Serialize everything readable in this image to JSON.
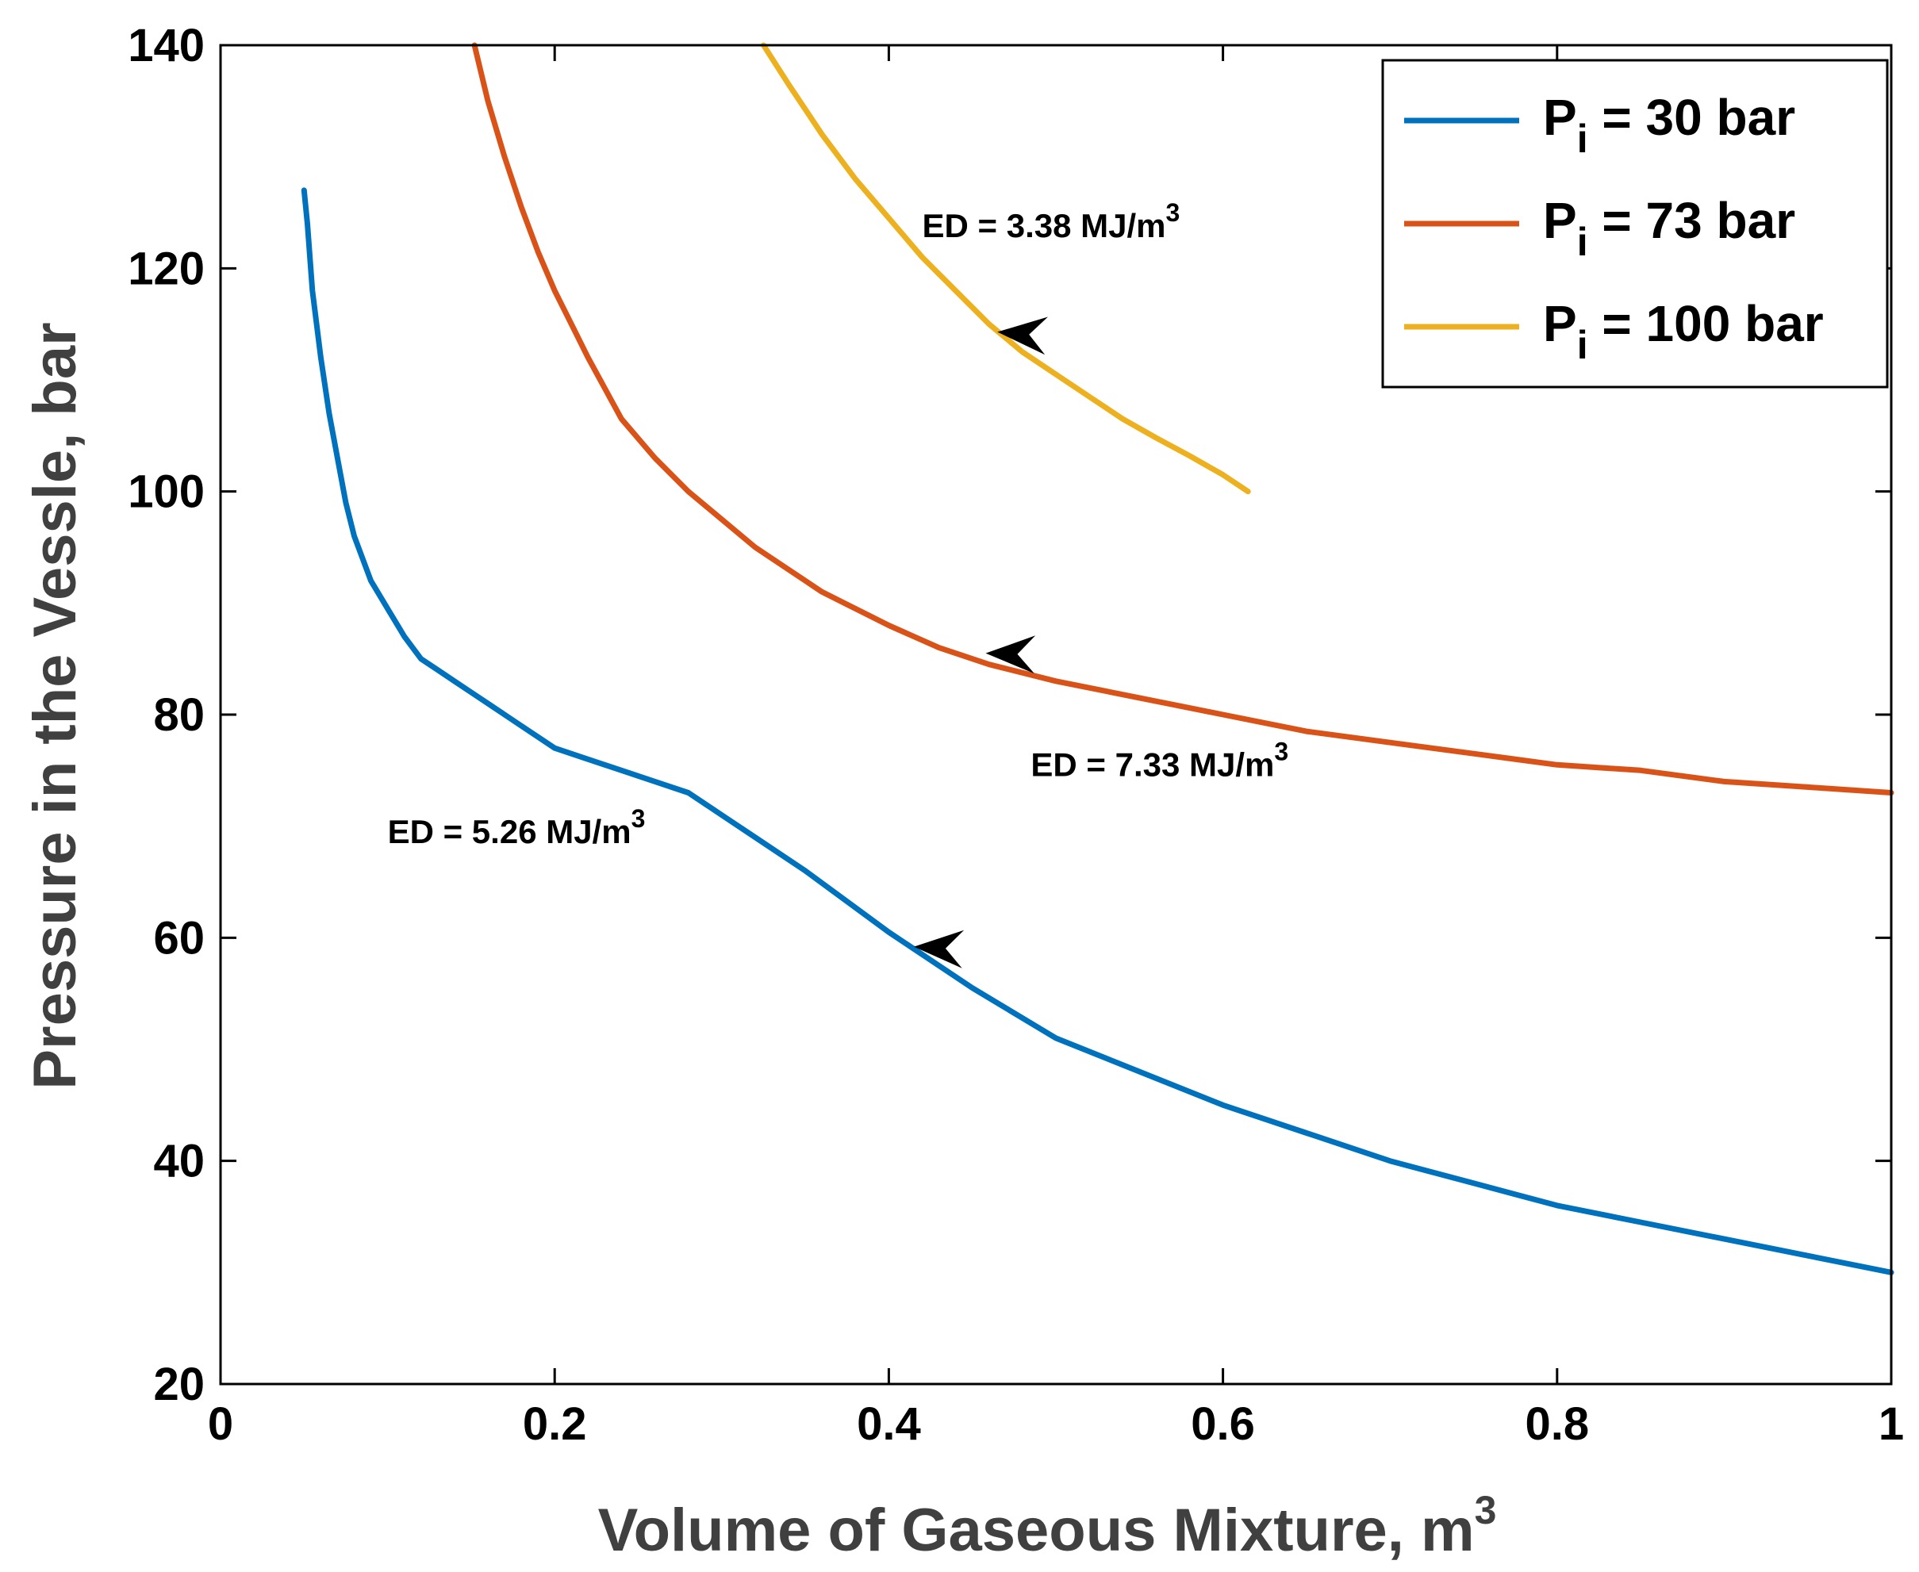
{
  "chart_data": {
    "type": "line",
    "title": "",
    "xlabel": "Volume of Gaseous Mixture, m",
    "xlabel_sup": "3",
    "ylabel": "Pressure in the Vessle, bar",
    "xlim": [
      0,
      1
    ],
    "ylim": [
      20,
      140
    ],
    "xticks": [
      0,
      0.2,
      0.4,
      0.6,
      0.8,
      1
    ],
    "xtick_labels": [
      "0",
      "0.2",
      "0.4",
      "0.6",
      "0.8",
      "1"
    ],
    "yticks": [
      20,
      40,
      60,
      80,
      100,
      120,
      140
    ],
    "ytick_labels": [
      "20",
      "40",
      "60",
      "80",
      "100",
      "120",
      "140"
    ],
    "grid": false,
    "legend_position": "top-right",
    "series": [
      {
        "name": "Pi = 30 bar",
        "legend_main": "P",
        "legend_sub": "i",
        "legend_rest": " = 30 bar",
        "color": "#0072BD",
        "x": [
          0.05,
          0.052,
          0.055,
          0.06,
          0.065,
          0.07,
          0.075,
          0.08,
          0.09,
          0.1,
          0.11,
          0.12,
          0.13,
          0.14,
          0.15,
          0.16,
          0.17,
          0.18,
          0.2,
          0.22,
          0.24,
          0.26,
          0.28,
          0.3,
          0.32,
          0.35,
          0.4,
          0.45,
          0.5,
          0.55,
          0.6,
          0.65,
          0.7,
          0.75,
          0.8,
          0.85,
          0.9,
          0.95,
          1.0
        ],
        "y": [
          127,
          124,
          118,
          112,
          107,
          103,
          99,
          96,
          92,
          89.5,
          87,
          85,
          84,
          83,
          82,
          81,
          80,
          79,
          77,
          76,
          75,
          74,
          73,
          71,
          69,
          66,
          60.5,
          55.5,
          51,
          48,
          45,
          42.5,
          40,
          38,
          36,
          34.5,
          33,
          31.5,
          30
        ]
      },
      {
        "name": "Pi = 73 bar",
        "legend_main": "P",
        "legend_sub": "i",
        "legend_rest": " = 73 bar",
        "color": "#D95319",
        "x": [
          0.152,
          0.16,
          0.17,
          0.18,
          0.19,
          0.2,
          0.21,
          0.22,
          0.24,
          0.26,
          0.28,
          0.3,
          0.32,
          0.34,
          0.36,
          0.38,
          0.4,
          0.43,
          0.46,
          0.5,
          0.55,
          0.6,
          0.65,
          0.7,
          0.75,
          0.8,
          0.85,
          0.9,
          0.95,
          1.0
        ],
        "y": [
          140,
          135,
          130,
          125.5,
          121.5,
          118,
          115,
          112,
          106.5,
          103,
          100,
          97.5,
          95,
          93,
          91,
          89.5,
          88,
          86,
          84.5,
          83,
          81.5,
          80,
          78.5,
          77.5,
          76.5,
          75.5,
          75,
          74,
          73.5,
          73
        ]
      },
      {
        "name": "Pi = 100 bar",
        "legend_main": "P",
        "legend_sub": "i",
        "legend_rest": " = 100 bar",
        "color": "#EDB120",
        "x": [
          0.325,
          0.34,
          0.36,
          0.38,
          0.4,
          0.42,
          0.44,
          0.46,
          0.48,
          0.5,
          0.52,
          0.54,
          0.56,
          0.58,
          0.6,
          0.615
        ],
        "y": [
          140,
          136.5,
          132,
          128,
          124.5,
          121,
          118,
          115,
          112.5,
          110.5,
          108.5,
          106.5,
          104.8,
          103.2,
          101.5,
          100
        ]
      }
    ],
    "arrows": [
      {
        "series": "Pi = 30 bar",
        "x": 0.415,
        "y": 59.2,
        "dx": -1,
        "dy": 0.78
      },
      {
        "series": "Pi = 73 bar",
        "x": 0.458,
        "y": 85.5,
        "dx": -1,
        "dy": 0.4
      },
      {
        "series": "Pi = 100 bar",
        "x": 0.465,
        "y": 114.3,
        "dx": -1,
        "dy": 1.18
      }
    ],
    "annotations": [
      {
        "text": "ED = 5.26 MJ/m",
        "sup": "3",
        "x": 0.1,
        "y": 68.5
      },
      {
        "text": "ED = 7.33 MJ/m",
        "sup": "3",
        "x": 0.485,
        "y": 74.5
      },
      {
        "text": "ED = 3.38 MJ/m",
        "sup": "3",
        "x": 0.42,
        "y": 122.8
      }
    ]
  }
}
